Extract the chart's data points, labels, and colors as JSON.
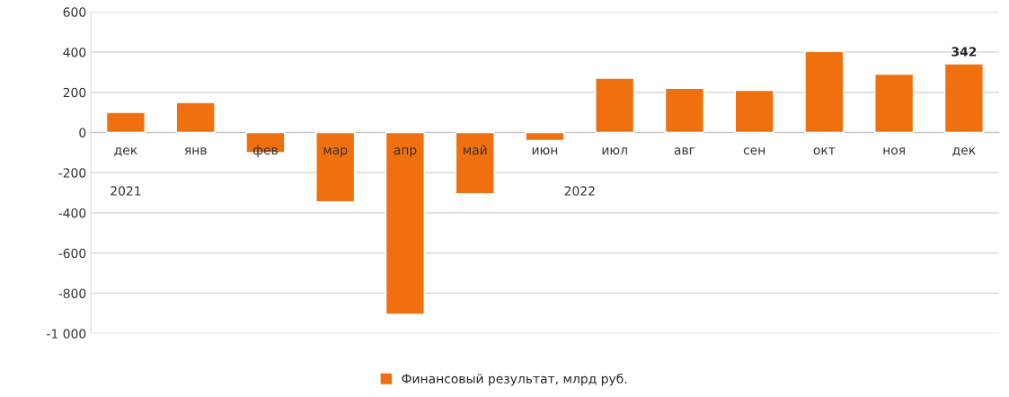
{
  "chart_data": {
    "type": "bar",
    "categories": [
      "дек",
      "янв",
      "фев",
      "мар",
      "апр",
      "май",
      "июн",
      "июл",
      "авг",
      "сен",
      "окт",
      "ноя",
      "дек"
    ],
    "series": [
      {
        "name": "Финансовый результат, млрд руб.",
        "color": "#f07010",
        "values": [
          100,
          150,
          -100,
          -345,
          -905,
          -305,
          -40,
          270,
          220,
          210,
          403,
          290,
          342
        ],
        "value_labels": [
          null,
          null,
          null,
          null,
          null,
          null,
          null,
          null,
          null,
          null,
          null,
          null,
          "342"
        ]
      }
    ],
    "annotations": [
      "2021",
      "2022"
    ],
    "ylim": [
      -1000,
      600
    ],
    "yticks": [
      600,
      400,
      200,
      0,
      -200,
      -400,
      -600,
      -800,
      {
        "value": -1000,
        "label": "-1 000"
      }
    ],
    "grid": "y",
    "legend": "bottom"
  }
}
